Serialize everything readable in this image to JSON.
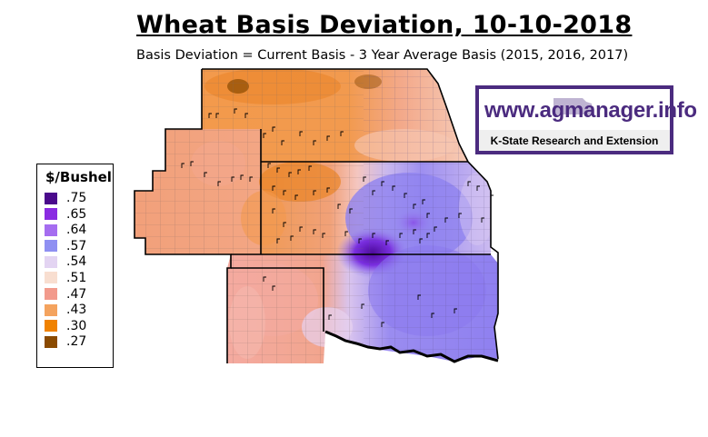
{
  "title": "Wheat Basis Deviation, 10-10-2018",
  "subtitle": "Basis Deviation = Current Basis - 3 Year Average Basis (2015, 2016, 2017)",
  "legend": {
    "title": "$/Bushel",
    "items": [
      {
        "label": ".75",
        "color": "#4a0a8c"
      },
      {
        "label": ".65",
        "color": "#8a2be2"
      },
      {
        "label": ".64",
        "color": "#a56df0"
      },
      {
        "label": ".57",
        "color": "#8f90f2"
      },
      {
        "label": ".54",
        "color": "#e3d4f2"
      },
      {
        "label": ".51",
        "color": "#f8ded0"
      },
      {
        "label": ".47",
        "color": "#f29a8c"
      },
      {
        "label": ".43",
        "color": "#f4a35e"
      },
      {
        "label": ".30",
        "color": "#f08200"
      },
      {
        "label": ".27",
        "color": "#8a4a00"
      }
    ]
  },
  "logo": {
    "url_text": "www.agmanager.info",
    "org_text": "K-State Research and Extension",
    "color": "#4b2b7f"
  },
  "map_colors": {
    "orange": "#f39a4c",
    "dark_orange": "#e97f1c",
    "salmon": "#f2a585",
    "pink": "#f4b7a8",
    "lavender": "#cdb7ee",
    "blue_purple": "#9a8cf0",
    "purple": "#8a55e8",
    "dark_purple": "#5a14b0",
    "border": "#000000",
    "county_line": "#6b5a5a"
  }
}
